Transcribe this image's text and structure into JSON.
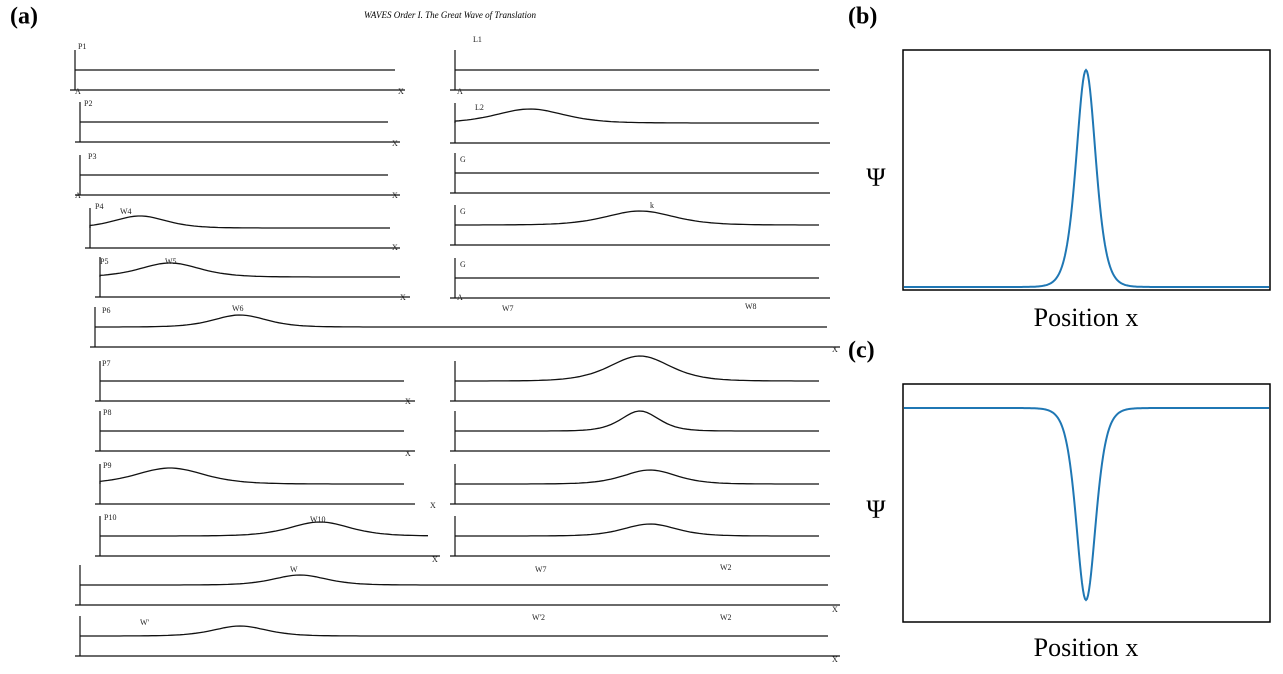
{
  "panel_a": {
    "label": "(a)",
    "title": "WAVES Order I. The Great Wave of Translation",
    "labels": [
      "P1",
      "P2",
      "P3",
      "P4",
      "W4",
      "P5",
      "W5",
      "P6",
      "W6",
      "W7",
      "W8",
      "P7",
      "P8",
      "P9",
      "P10",
      "W10",
      "W",
      "W7",
      "W2",
      "W'",
      "W'2",
      "W2",
      "L1",
      "L2",
      "k",
      "X",
      "X",
      "X",
      "X",
      "X",
      "X",
      "X",
      "X",
      "X",
      "X",
      "X",
      "X",
      "A",
      "A",
      "A",
      "A",
      "G",
      "G",
      "G"
    ]
  },
  "panel_b": {
    "label": "(b)",
    "ylabel": "Ψ",
    "xlabel": "Position x"
  },
  "panel_c": {
    "label": "(c)",
    "ylabel": "Ψ",
    "xlabel": "Position x"
  }
}
